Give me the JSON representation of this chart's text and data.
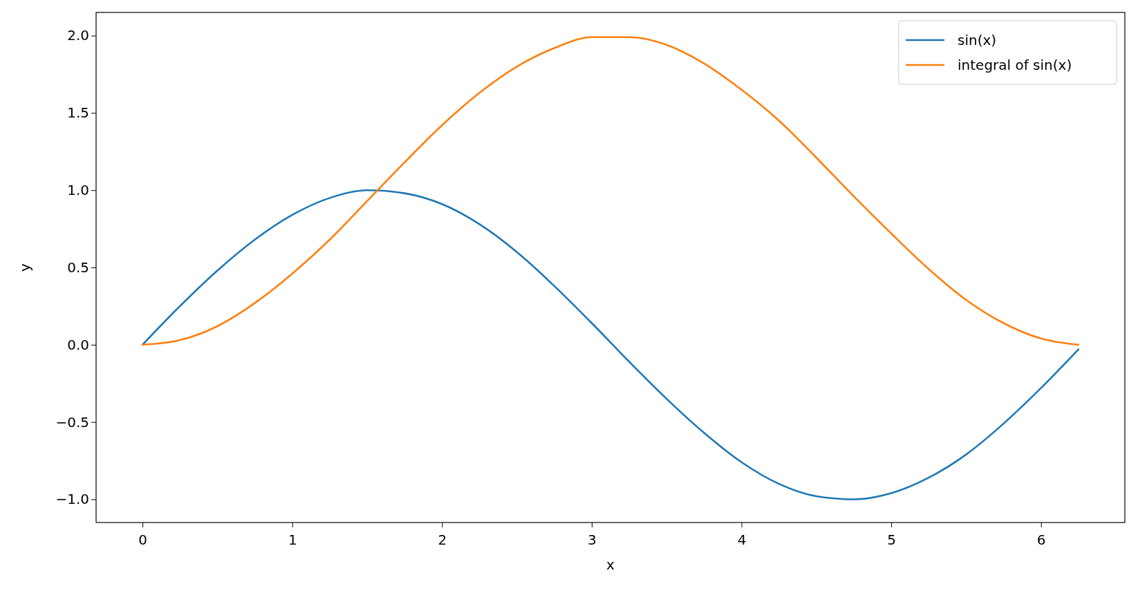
{
  "chart_data": {
    "type": "line",
    "xlabel": "x",
    "ylabel": "y",
    "x": [
      0,
      0.25,
      0.5,
      0.75,
      1,
      1.25,
      1.5,
      1.75,
      2,
      2.25,
      2.5,
      2.75,
      3,
      3.25,
      3.5,
      3.75,
      4,
      4.25,
      4.5,
      4.75,
      5,
      5.25,
      5.5,
      5.75,
      6,
      6.25
    ],
    "series": [
      {
        "name": "sin(x)",
        "color": "#1f77b4",
        "values": [
          0,
          0.25,
          0.48,
          0.68,
          0.84,
          0.95,
          1.0,
          0.98,
          0.91,
          0.78,
          0.6,
          0.38,
          0.14,
          -0.11,
          -0.35,
          -0.57,
          -0.76,
          -0.9,
          -0.98,
          -1.0,
          -0.96,
          -0.86,
          -0.71,
          -0.51,
          -0.28,
          -0.03
        ]
      },
      {
        "name": "integral of sin(x)",
        "color": "#ff7f0e",
        "values": [
          0,
          0.03,
          0.12,
          0.27,
          0.46,
          0.68,
          0.93,
          1.18,
          1.42,
          1.63,
          1.8,
          1.92,
          1.99,
          1.99,
          1.94,
          1.82,
          1.65,
          1.45,
          1.21,
          0.96,
          0.72,
          0.49,
          0.29,
          0.14,
          0.04,
          0.0
        ]
      }
    ],
    "xlim": [
      -0.31,
      6.56
    ],
    "ylim": [
      -1.15,
      2.15
    ],
    "xticks": [
      0,
      1,
      2,
      3,
      4,
      5,
      6
    ],
    "yticks": [
      {
        "value": -1,
        "label": "−1.0"
      },
      {
        "value": -0.5,
        "label": "−0.5"
      },
      {
        "value": 0,
        "label": "0.0"
      },
      {
        "value": 0.5,
        "label": "0.5"
      },
      {
        "value": 1,
        "label": "1.0"
      },
      {
        "value": 1.5,
        "label": "1.5"
      },
      {
        "value": 2,
        "label": "2.0"
      }
    ],
    "grid": false,
    "legend": "top right",
    "marker": "none",
    "line_style": "solid"
  }
}
